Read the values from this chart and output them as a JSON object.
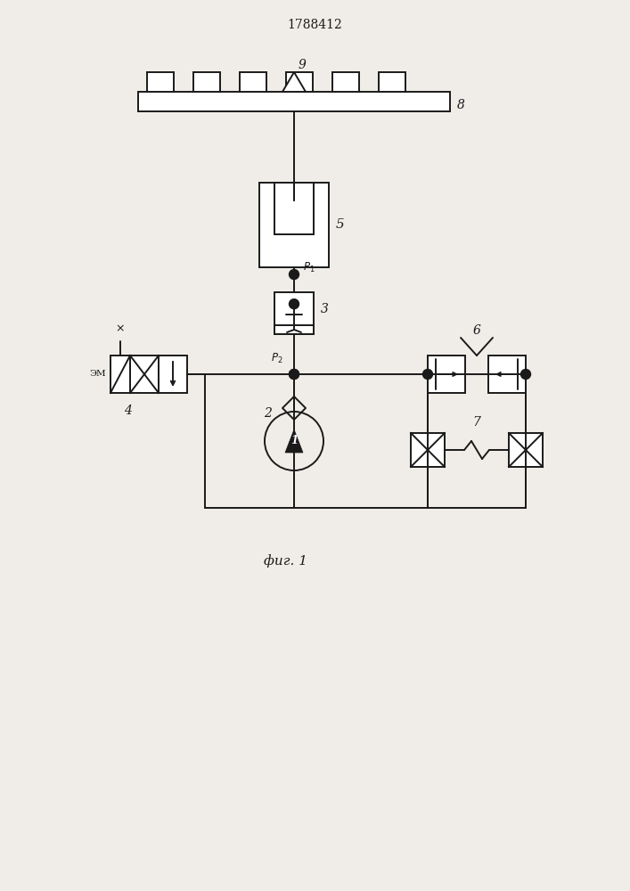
{
  "title": "1788412",
  "background_color": "#f0ede8",
  "line_color": "#1a1a1a",
  "line_width": 1.4,
  "fig_width": 7.07,
  "fig_height": 10.0,
  "xlim": [
    0,
    7.07
  ],
  "ylim": [
    0,
    10.0
  ]
}
